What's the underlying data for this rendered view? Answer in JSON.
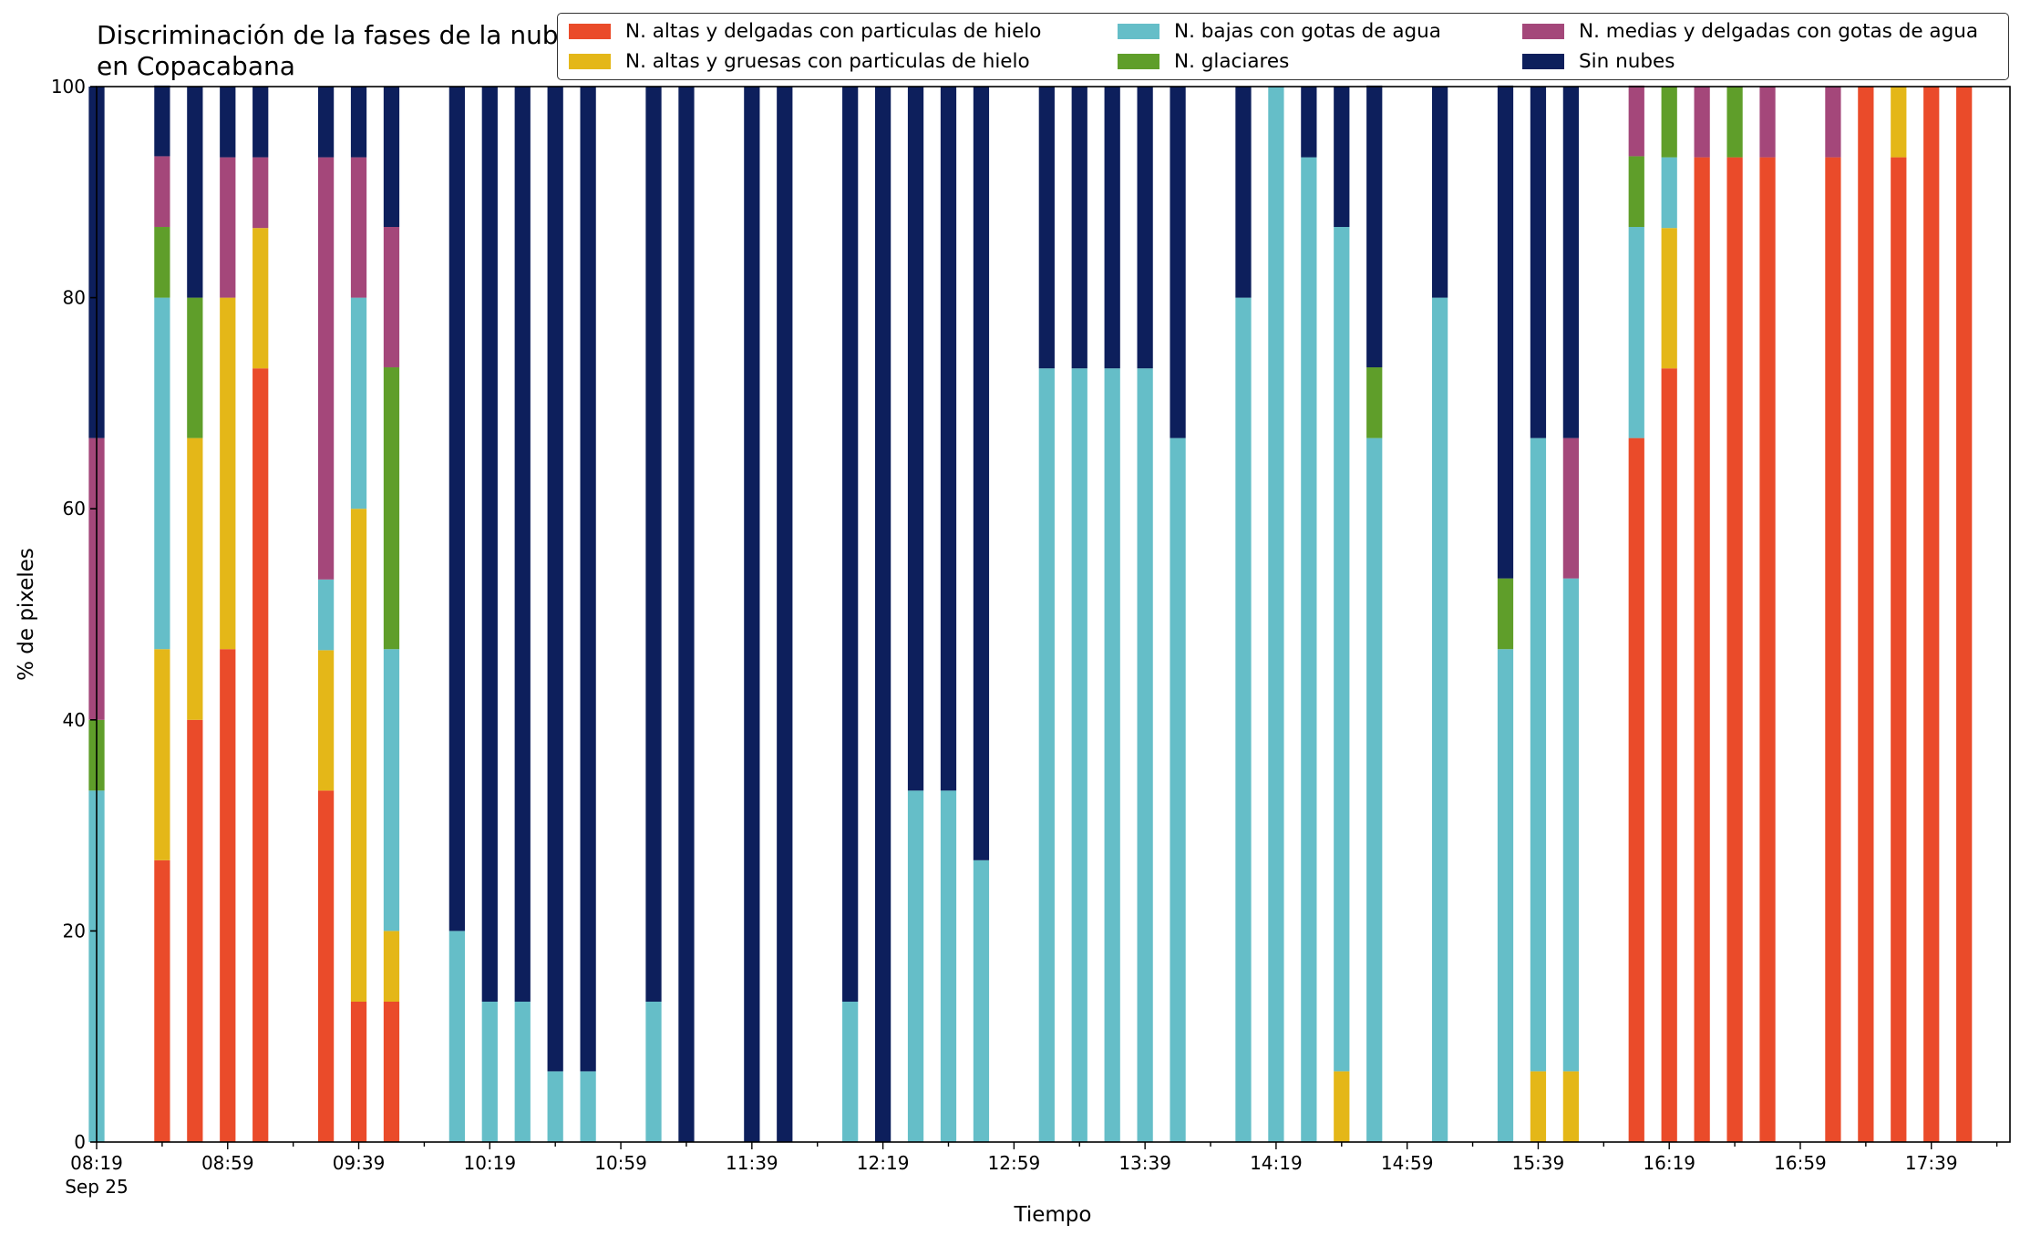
{
  "chart_data": {
    "type": "bar",
    "stacked": true,
    "title": "Discriminación de la fases de la nube en Copacabana",
    "xlabel": "Tiempo",
    "ylabel": "% de pixeles",
    "ylim": [
      0,
      100
    ],
    "yticks": [
      0,
      20,
      40,
      60,
      80,
      100
    ],
    "xticks": [
      "08:19",
      "08:59",
      "09:39",
      "10:19",
      "10:59",
      "11:39",
      "12:19",
      "12:59",
      "13:39",
      "14:19",
      "14:59",
      "15:39",
      "16:19",
      "16:59",
      "17:39"
    ],
    "x_date_label": "Sep 25",
    "legend_position": "top-right",
    "x_range": [
      "08:19",
      "18:03"
    ],
    "slot_minutes": 10,
    "categories": [
      "08:19",
      "08:39",
      "08:49",
      "08:59",
      "09:09",
      "09:29",
      "09:39",
      "09:49",
      "10:09",
      "10:19",
      "10:29",
      "10:39",
      "10:49",
      "11:09",
      "11:19",
      "11:39",
      "11:49",
      "12:09",
      "12:19",
      "12:29",
      "12:39",
      "12:49",
      "13:09",
      "13:19",
      "13:29",
      "13:39",
      "13:49",
      "14:09",
      "14:19",
      "14:29",
      "14:39",
      "14:49",
      "15:09",
      "15:29",
      "15:39",
      "15:49",
      "16:09",
      "16:19",
      "16:29",
      "16:39",
      "16:49",
      "17:09",
      "17:19",
      "17:29",
      "17:39",
      "17:49"
    ],
    "series": [
      {
        "name": "N. altas y delgadas con particulas de hielo",
        "color": "#ea4b2a",
        "values": [
          0,
          26.7,
          40,
          46.7,
          73.3,
          33.3,
          13.3,
          13.3,
          0,
          0,
          0,
          0,
          0,
          0,
          0,
          0,
          0,
          0,
          0,
          0,
          0,
          0,
          0,
          0,
          0,
          0,
          0,
          0,
          0,
          0,
          0,
          0,
          0,
          0,
          0,
          0,
          66.7,
          73.3,
          93.3,
          93.3,
          93.3,
          93.3,
          100,
          93.3,
          100,
          100
        ]
      },
      {
        "name": "N. altas y gruesas con particulas de hielo",
        "color": "#e4b718",
        "values": [
          0,
          20,
          26.7,
          33.3,
          13.3,
          13.3,
          46.7,
          6.7,
          0,
          0,
          0,
          0,
          0,
          0,
          0,
          0,
          0,
          0,
          0,
          0,
          0,
          0,
          0,
          0,
          0,
          0,
          0,
          0,
          0,
          0,
          6.7,
          0,
          0,
          0,
          6.7,
          6.7,
          0,
          13.3,
          0,
          0,
          0,
          0,
          0,
          6.7,
          0,
          0
        ]
      },
      {
        "name": "N. bajas con gotas de agua",
        "color": "#65bec8",
        "values": [
          33.3,
          33.3,
          0,
          0,
          0,
          6.7,
          20,
          26.7,
          20,
          13.3,
          13.3,
          6.7,
          6.7,
          13.3,
          0,
          0,
          0,
          13.3,
          0,
          33.3,
          33.3,
          26.7,
          73.3,
          73.3,
          73.3,
          73.3,
          66.7,
          80,
          100,
          93.3,
          80,
          66.7,
          80,
          46.7,
          60,
          46.7,
          20,
          6.7,
          0,
          0,
          0,
          0,
          0,
          0,
          0,
          0
        ]
      },
      {
        "name": "N. glaciares",
        "color": "#5f9e2a",
        "values": [
          6.7,
          6.7,
          13.3,
          0,
          0,
          0,
          0,
          26.7,
          0,
          0,
          0,
          0,
          0,
          0,
          0,
          0,
          0,
          0,
          0,
          0,
          0,
          0,
          0,
          0,
          0,
          0,
          0,
          0,
          0,
          0,
          0,
          6.7,
          0,
          6.7,
          0,
          0,
          6.7,
          6.7,
          0,
          6.7,
          0,
          0,
          0,
          0,
          0,
          0
        ]
      },
      {
        "name": "N. medias y delgadas con gotas de agua",
        "color": "#a4477a",
        "values": [
          26.7,
          6.7,
          0,
          13.3,
          6.7,
          40,
          13.3,
          13.3,
          0,
          0,
          0,
          0,
          0,
          0,
          0,
          0,
          0,
          0,
          0,
          0,
          0,
          0,
          0,
          0,
          0,
          0,
          0,
          0,
          0,
          0,
          0,
          0,
          0,
          0,
          0,
          13.3,
          6.7,
          0,
          6.7,
          0,
          6.7,
          6.7,
          0,
          0,
          0,
          0
        ]
      },
      {
        "name": "Sin nubes",
        "color": "#0d1f5c",
        "values": [
          33.3,
          6.7,
          20,
          6.7,
          6.7,
          6.7,
          6.7,
          13.3,
          80,
          86.7,
          86.7,
          93.3,
          93.3,
          86.7,
          100,
          100,
          100,
          86.7,
          100,
          66.7,
          66.7,
          73.3,
          26.7,
          26.7,
          26.7,
          26.7,
          33.3,
          20,
          0,
          6.7,
          13.3,
          26.7,
          20,
          46.7,
          33.3,
          33.3,
          0,
          0,
          0,
          0,
          0,
          0,
          0,
          0,
          0,
          0
        ]
      }
    ]
  }
}
